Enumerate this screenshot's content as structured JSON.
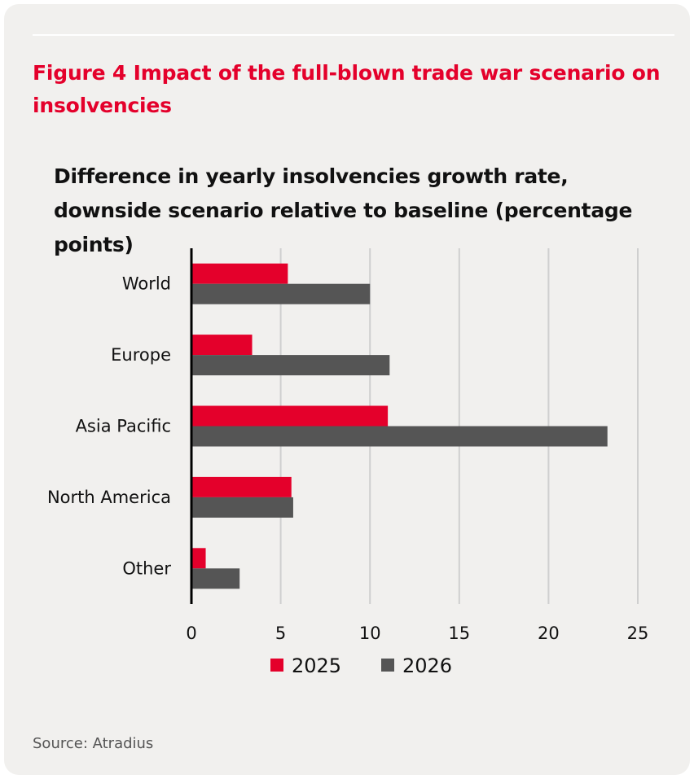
{
  "figure_title": "Figure 4 Impact of the full-blown trade war scenario on insolvencies",
  "source": "Source: Atradius",
  "colors": {
    "accent": "#e4002b",
    "series_2025": "#e4002b",
    "series_2026": "#555555",
    "grid": "#cfcfcf",
    "axis": "#000000"
  },
  "chart_data": {
    "type": "bar",
    "orientation": "horizontal",
    "title": "Difference in yearly insolvencies growth rate, downside scenario relative to baseline (percentage points)",
    "categories": [
      "World",
      "Europe",
      "Asia Pacific",
      "North America",
      "Other"
    ],
    "series": [
      {
        "name": "2025",
        "values": [
          5.4,
          3.4,
          11.0,
          5.6,
          0.8
        ]
      },
      {
        "name": "2026",
        "values": [
          10.0,
          11.1,
          23.3,
          5.7,
          2.7
        ]
      }
    ],
    "xlim": [
      0,
      25
    ],
    "xticks": [
      0,
      5,
      10,
      15,
      20,
      25
    ],
    "xlabel": "",
    "ylabel": "",
    "grid": true,
    "legend_position": "bottom"
  }
}
